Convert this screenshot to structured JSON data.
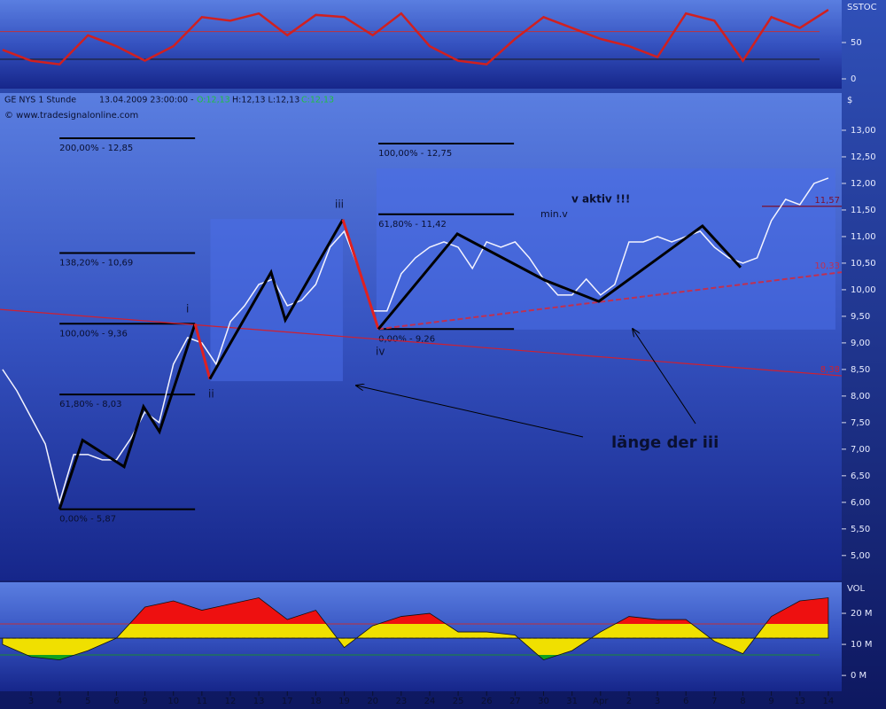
{
  "header": {
    "symbol": "GE NYS 1 Stunde",
    "time": "13.04.2009 23:00:00 -",
    "open": "O:12,13",
    "hl": "H:12,13 L:12,13",
    "close": "C:12,13",
    "source": "© www.tradesignalonline.com"
  },
  "xaxis": {
    "xlim": [
      -1.09,
      28.47
    ],
    "xticks": [
      {
        "value": 0,
        "label": "3"
      },
      {
        "value": 1,
        "label": "4"
      },
      {
        "value": 2,
        "label": "5"
      },
      {
        "value": 3,
        "label": "6"
      },
      {
        "value": 4,
        "label": "9"
      },
      {
        "value": 5,
        "label": "10"
      },
      {
        "value": 6,
        "label": "11"
      },
      {
        "value": 7,
        "label": "12"
      },
      {
        "value": 8,
        "label": "13"
      },
      {
        "value": 9,
        "label": "17"
      },
      {
        "value": 10,
        "label": "18"
      },
      {
        "value": 11,
        "label": "19"
      },
      {
        "value": 12,
        "label": "20"
      },
      {
        "value": 13,
        "label": "23"
      },
      {
        "value": 14,
        "label": "24"
      },
      {
        "value": 15,
        "label": "25"
      },
      {
        "value": 16,
        "label": "26"
      },
      {
        "value": 17,
        "label": "27"
      },
      {
        "value": 18,
        "label": "30"
      },
      {
        "value": 19,
        "label": "31"
      },
      {
        "value": 20,
        "label": "Apr"
      },
      {
        "value": 21,
        "label": "2"
      },
      {
        "value": 22,
        "label": "3"
      },
      {
        "value": 23,
        "label": "6"
      },
      {
        "value": 24,
        "label": "7"
      },
      {
        "value": 25,
        "label": "8"
      },
      {
        "value": 26,
        "label": "9"
      },
      {
        "value": 27,
        "label": "13"
      },
      {
        "value": 28,
        "label": "14"
      }
    ]
  },
  "chart_data": [
    {
      "type": "line",
      "axis_label": "SSTOC",
      "ylim": [
        -13.4,
        108.5
      ],
      "yticks": [
        0,
        50
      ],
      "levels": [
        {
          "value": 65,
          "color": "#c0303a"
        },
        {
          "value": 27,
          "color": "#1a1a1a"
        }
      ],
      "series": [
        {
          "color": "#d02020",
          "x": [
            -1,
            0,
            1,
            2,
            3,
            4,
            5,
            6,
            7,
            8,
            9,
            10,
            11,
            12,
            13,
            14,
            15,
            16,
            17,
            18,
            19,
            20,
            21,
            22,
            23,
            24,
            25,
            26,
            27,
            28
          ],
          "values": [
            40,
            25,
            20,
            60,
            45,
            25,
            45,
            85,
            80,
            90,
            60,
            88,
            85,
            60,
            90,
            45,
            25,
            20,
            55,
            85,
            70,
            55,
            45,
            30,
            90,
            80,
            25,
            85,
            70,
            95
          ]
        }
      ]
    },
    {
      "type": "line",
      "axis_label": "$",
      "ylim": [
        4.53,
        13.7
      ],
      "yticks": [
        {
          "value": 5,
          "label": "5,00"
        },
        {
          "value": 5.5,
          "label": "5,50"
        },
        {
          "value": 6,
          "label": "6,00"
        },
        {
          "value": 6.5,
          "label": "6,50"
        },
        {
          "value": 7,
          "label": "7,00"
        },
        {
          "value": 7.5,
          "label": "7,50"
        },
        {
          "value": 8,
          "label": "8,00"
        },
        {
          "value": 8.5,
          "label": "8,50"
        },
        {
          "value": 9,
          "label": "9,00"
        },
        {
          "value": 9.5,
          "label": "9,50"
        },
        {
          "value": 10,
          "label": "10,00"
        },
        {
          "value": 10.5,
          "label": "10,50"
        },
        {
          "value": 11,
          "label": "11,00"
        },
        {
          "value": 11.5,
          "label": "11,50"
        },
        {
          "value": 12,
          "label": "12,00"
        },
        {
          "value": 12.5,
          "label": "12,50"
        },
        {
          "value": 13,
          "label": "13,00"
        }
      ],
      "boxes": [
        {
          "x": [
            6.3,
            10.95
          ],
          "values": [
            8.28,
            11.33
          ]
        },
        {
          "x": [
            12.13,
            28.25
          ],
          "values": [
            9.25,
            12.28
          ]
        }
      ],
      "fib_levels": [
        {
          "label": "200,00% - 12,85",
          "value": 12.85,
          "x": [
            1.0,
            5.76
          ]
        },
        {
          "label": "138,20% - 10,69",
          "value": 10.69,
          "x": [
            1.0,
            5.76
          ]
        },
        {
          "label": "100,00% - 9,36",
          "value": 9.36,
          "x": [
            1.0,
            5.76
          ]
        },
        {
          "label": "61,80% - 8,03",
          "value": 8.03,
          "x": [
            1.0,
            5.76
          ]
        },
        {
          "label": "0,00% - 5,87",
          "value": 5.87,
          "x": [
            1.0,
            5.76
          ]
        },
        {
          "label": "100,00% - 12,75",
          "value": 12.75,
          "x": [
            12.2,
            16.96
          ]
        },
        {
          "label": "61,80% - 11,42",
          "value": 11.42,
          "x": [
            12.2,
            16.96
          ]
        },
        {
          "label": "0,00% - 9,26",
          "value": 9.26,
          "x": [
            12.2,
            16.96
          ]
        }
      ],
      "trend_lines": [
        {
          "label": "8,38",
          "color": "#d02030",
          "x": [
            -1.09,
            28.47
          ],
          "values": [
            9.63,
            8.38
          ],
          "dashed": false
        },
        {
          "label": "10,33",
          "color": "#c03050",
          "x": [
            12.2,
            28.47
          ],
          "values": [
            9.26,
            10.33
          ],
          "dashed": true
        },
        {
          "label": "11,57",
          "color": "#7a1030",
          "x": [
            25.67,
            28.47
          ],
          "values": [
            11.57,
            11.57
          ],
          "dashed": false
        }
      ],
      "series": [
        {
          "color": "#f4f4ff",
          "x": [
            -1,
            -0.5,
            0,
            0.5,
            1,
            1.5,
            2,
            2.5,
            3,
            3.5,
            4,
            4.5,
            5,
            5.5,
            6,
            6.5,
            7,
            7.5,
            8,
            8.5,
            9,
            9.5,
            10,
            10.5,
            11,
            11.5,
            12,
            12.5,
            13,
            13.5,
            14,
            14.5,
            15,
            15.5,
            16,
            16.5,
            17,
            17.5,
            18,
            18.5,
            19,
            19.5,
            20,
            20.5,
            21,
            21.5,
            22,
            22.5,
            23,
            23.5,
            24,
            24.5,
            25,
            25.5,
            26,
            26.5,
            27,
            27.5,
            28
          ],
          "values": [
            8.5,
            8.1,
            7.6,
            7.1,
            6.0,
            6.9,
            6.9,
            6.8,
            6.8,
            7.2,
            7.7,
            7.5,
            8.6,
            9.1,
            9.0,
            8.6,
            9.4,
            9.7,
            10.1,
            10.2,
            9.7,
            9.8,
            10.1,
            10.8,
            11.1,
            10.4,
            9.6,
            9.6,
            10.3,
            10.6,
            10.8,
            10.9,
            10.8,
            10.4,
            10.9,
            10.8,
            10.9,
            10.6,
            10.2,
            9.9,
            9.9,
            10.2,
            9.9,
            10.1,
            10.9,
            10.9,
            11.0,
            10.9,
            11.0,
            11.1,
            10.8,
            10.6,
            10.5,
            10.6,
            11.3,
            11.7,
            11.6,
            12.0,
            12.1
          ]
        },
        {
          "color": "#000000",
          "x": [
            1.0,
            1.81,
            3.27,
            3.95,
            4.51,
            5.76
          ],
          "values": [
            5.87,
            7.17,
            6.67,
            7.8,
            7.33,
            9.36
          ]
        },
        {
          "color": "#e02020",
          "x": [
            5.76,
            6.28
          ],
          "values": [
            9.36,
            8.32
          ]
        },
        {
          "color": "#000000",
          "x": [
            6.28,
            8.43,
            8.93,
            10.95
          ],
          "values": [
            8.32,
            10.33,
            9.43,
            11.32
          ]
        },
        {
          "color": "#e02020",
          "x": [
            10.95,
            12.2
          ],
          "values": [
            11.32,
            9.26
          ]
        },
        {
          "color": "#000000",
          "x": [
            12.2,
            14.97,
            18.04,
            19.94,
            23.58,
            24.92
          ],
          "values": [
            9.26,
            11.05,
            10.18,
            9.78,
            11.2,
            10.42
          ]
        }
      ],
      "annotations": {
        "w1": "i",
        "w2": "ii",
        "w3": "iii",
        "w4": "iv",
        "v": "v aktiv !!!",
        "minv": "min.v",
        "length": "länge der iii"
      }
    },
    {
      "type": "area",
      "axis_label": "VOL",
      "ylim": [
        -5.1,
        30
      ],
      "baseline": 12,
      "yticks": [
        {
          "value": 0,
          "label": "0 M"
        },
        {
          "value": 10,
          "label": "10 M"
        },
        {
          "value": 20,
          "label": "20 M"
        }
      ],
      "levels": [
        {
          "value": 16.6,
          "color": "#c0303a"
        },
        {
          "value": 6.6,
          "color": "#1a8a30"
        }
      ],
      "series": [
        {
          "color": "#f0e000",
          "x": [
            -1,
            0,
            1,
            2,
            3,
            4,
            5,
            6,
            7,
            8,
            9,
            10,
            11,
            12,
            13,
            14,
            15,
            16,
            17,
            18,
            19,
            20,
            21,
            22,
            23,
            24,
            25,
            26,
            27,
            28
          ],
          "values": [
            10,
            6,
            5,
            8,
            12,
            22,
            24,
            21,
            23,
            25,
            18,
            21,
            9,
            16,
            19,
            20,
            14,
            14,
            13,
            5,
            8,
            14,
            19,
            18,
            18,
            11,
            7,
            19,
            24,
            25
          ]
        }
      ]
    }
  ]
}
